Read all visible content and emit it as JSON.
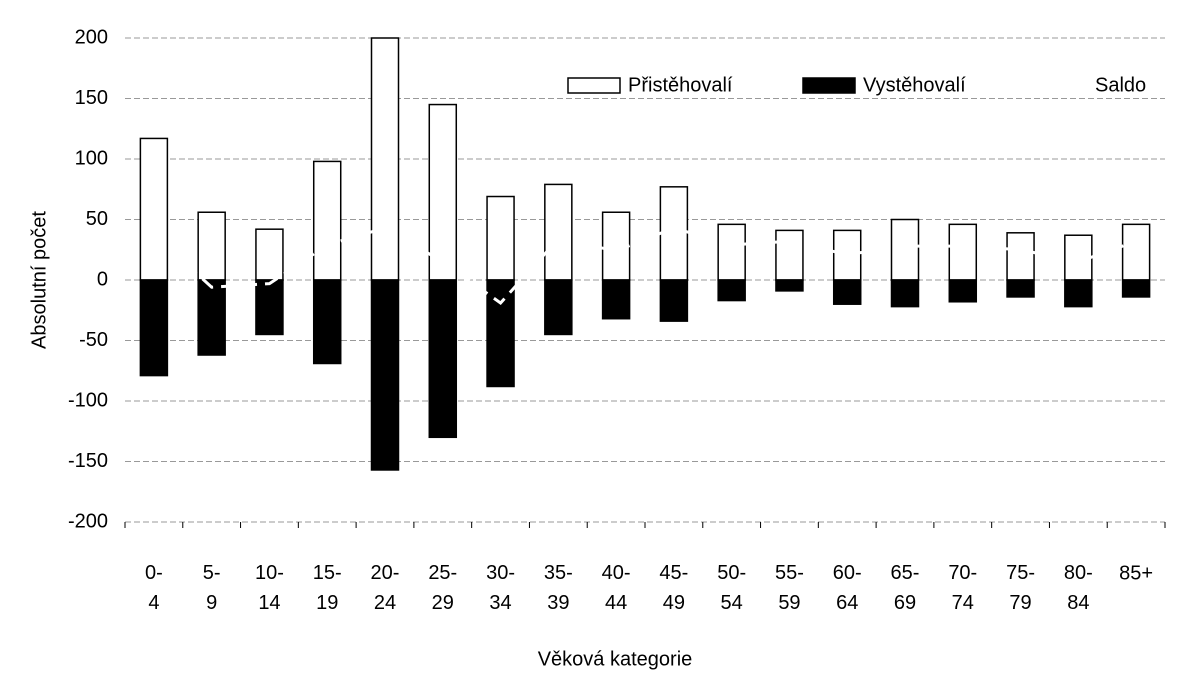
{
  "chart_data": {
    "type": "bar",
    "ylabel": "Absolutní počet",
    "xlabel": "Věková kategorie",
    "categories": [
      "0-4",
      "5-9",
      "10-14",
      "15-19",
      "20-24",
      "25-29",
      "30-34",
      "35-39",
      "40-44",
      "45-49",
      "50-54",
      "55-59",
      "60-64",
      "65-69",
      "70-74",
      "75-79",
      "80-84",
      "85+"
    ],
    "series": [
      {
        "name": "Přistěhovalí",
        "color": "#ffffff",
        "values": [
          117,
          56,
          42,
          98,
          200,
          145,
          69,
          79,
          56,
          77,
          46,
          41,
          41,
          50,
          46,
          39,
          37,
          46
        ]
      },
      {
        "name": "Vystěhovalí",
        "color": "#000000",
        "values": [
          -79,
          -62,
          -45,
          -69,
          -157,
          -130,
          -88,
          -45,
          -32,
          -34,
          -17,
          -9,
          -20,
          -22,
          -18,
          -14,
          -22,
          -14
        ]
      },
      {
        "name": "Saldo",
        "color": "#ffffff",
        "line": true,
        "values": [
          38,
          -6,
          -3,
          29,
          43,
          15,
          -19,
          34,
          24,
          43,
          29,
          32,
          21,
          28,
          28,
          25,
          15,
          32
        ]
      }
    ],
    "ylim": [
      -200,
      200
    ],
    "yticks": [
      -200,
      -150,
      -100,
      -50,
      0,
      50,
      100,
      150,
      200
    ],
    "grid": true
  }
}
